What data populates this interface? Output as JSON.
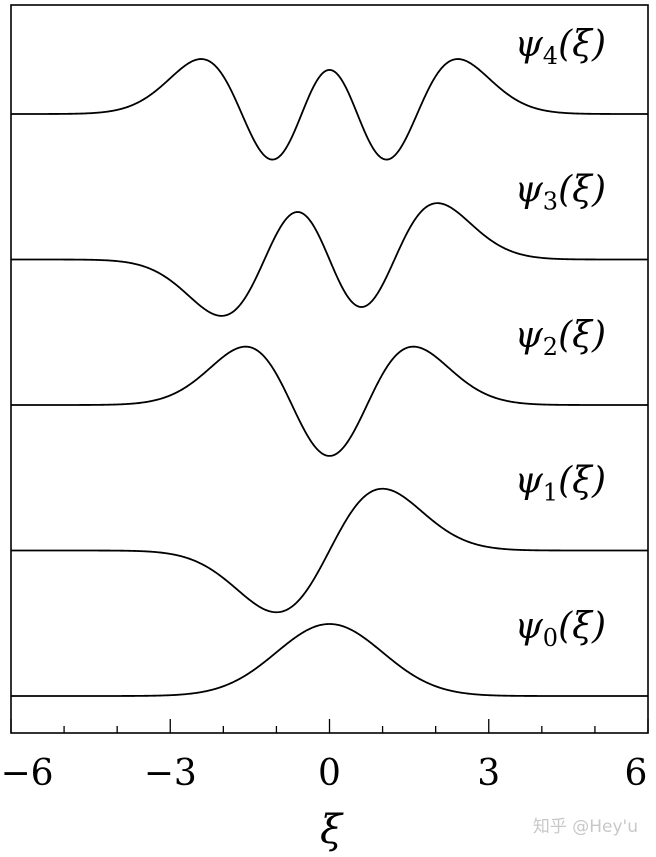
{
  "chart_data": {
    "type": "line",
    "xlabel": "ξ",
    "ylabel": "",
    "xlim": [
      -6,
      6
    ],
    "x_ticks": [
      -6,
      -3,
      0,
      3,
      6
    ],
    "x_tick_labels": [
      "−6",
      "−3",
      "0",
      "3",
      "6"
    ],
    "x_minor_ticks": [
      -5,
      -4,
      -2,
      -1,
      1,
      2,
      4,
      5
    ],
    "grid": false,
    "legend": "none",
    "line_color": "#000000",
    "series": [
      {
        "name": "ψ0(ξ)",
        "label_parts": {
          "main": "ψ",
          "sub": "0",
          "arg": "(ξ)"
        },
        "n": 0,
        "baseline": 0.0
      },
      {
        "name": "ψ1(ξ)",
        "label_parts": {
          "main": "ψ",
          "sub": "1",
          "arg": "(ξ)"
        },
        "n": 1,
        "baseline": 1.0
      },
      {
        "name": "ψ2(ξ)",
        "label_parts": {
          "main": "ψ",
          "sub": "2",
          "arg": "(ξ)"
        },
        "n": 2,
        "baseline": 2.0
      },
      {
        "name": "ψ3(ξ)",
        "label_parts": {
          "main": "ψ",
          "sub": "3",
          "arg": "(ξ)"
        },
        "n": 3,
        "baseline": 3.0
      },
      {
        "name": "ψ4(ξ)",
        "label_parts": {
          "main": "ψ",
          "sub": "4",
          "arg": "(ξ)"
        },
        "n": 4,
        "baseline": 4.0
      }
    ]
  },
  "watermark": "知乎 @Hey'u"
}
